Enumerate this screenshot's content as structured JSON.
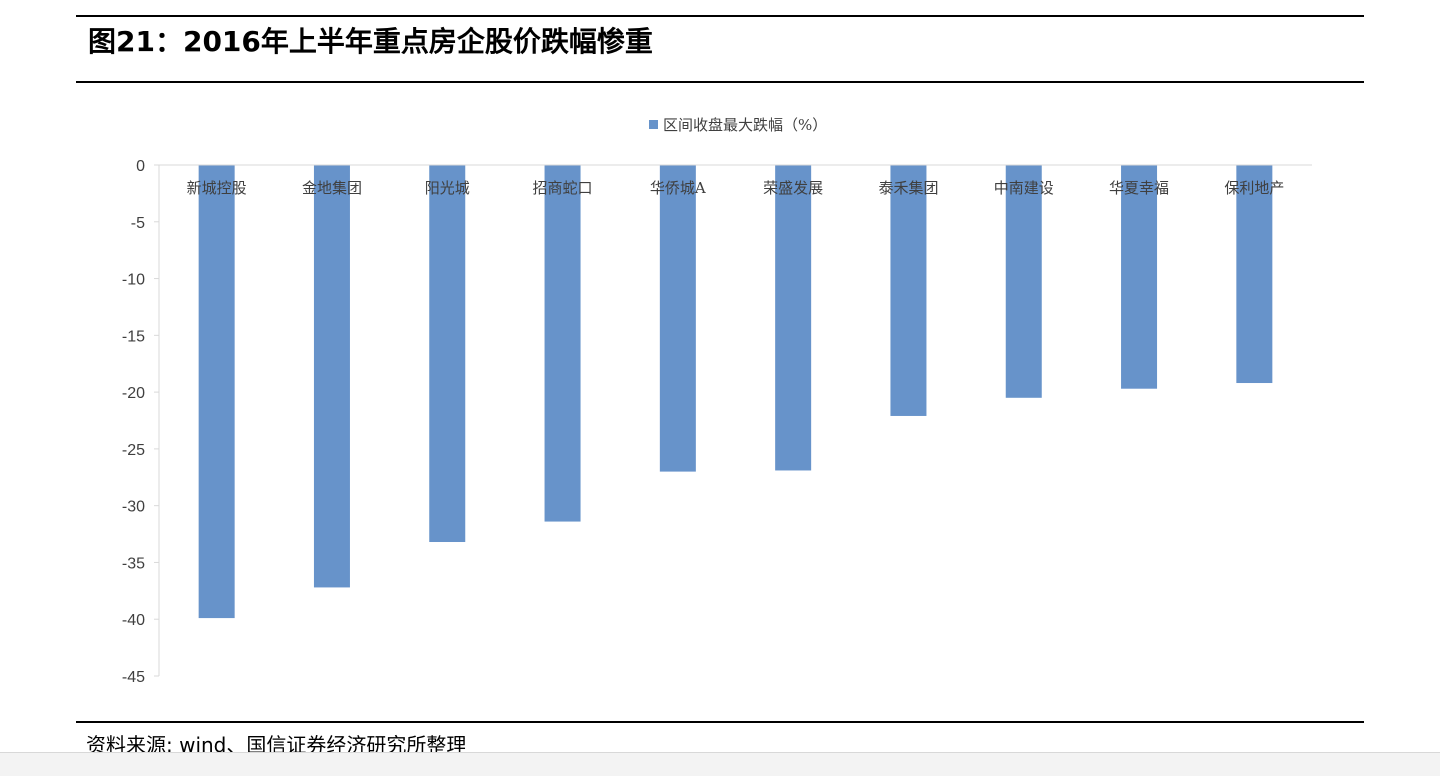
{
  "figure_title": "图21：2016年上半年重点房企股价跌幅惨重",
  "source_note": "资料来源: wind、国信证券经济研究所整理",
  "colors": {
    "bar": "#6793CA",
    "axis": "#D9D9D9",
    "tick_text": "#3F3F3F"
  },
  "chart_data": {
    "type": "bar",
    "title": "",
    "legend_position": "top-center",
    "grid": false,
    "xlabel": "",
    "ylabel": "",
    "ylim": [
      -45,
      0
    ],
    "yticks": [
      "0",
      "-5",
      "-10",
      "-15",
      "-20",
      "-25",
      "-30",
      "-35",
      "-40",
      "-45"
    ],
    "categories": [
      "新城控股",
      "金地集团",
      "阳光城",
      "招商蛇口",
      "华侨城A",
      "荣盛发展",
      "泰禾集团",
      "中南建设",
      "华夏幸福",
      "保利地产"
    ],
    "series": [
      {
        "name": "区间收盘最大跌幅（%）",
        "values": [
          -39.9,
          -37.2,
          -33.2,
          -31.4,
          -27.0,
          -26.9,
          -22.1,
          -20.5,
          -19.7,
          -19.2
        ]
      }
    ]
  }
}
